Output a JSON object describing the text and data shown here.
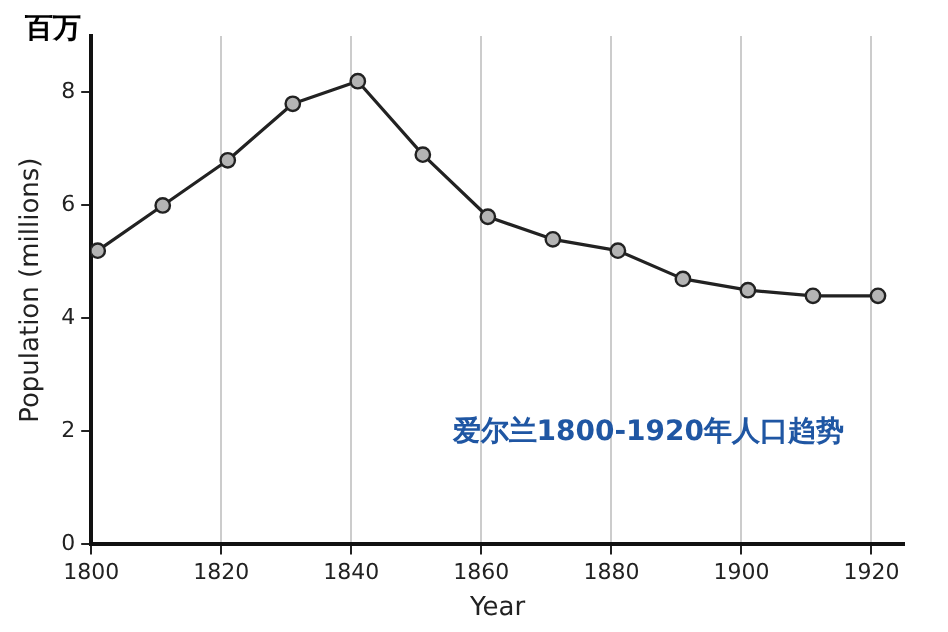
{
  "chart_data": {
    "type": "line",
    "xlabel": "Year",
    "ylabel": "Population (millions)",
    "annotations": [
      "百万",
      "爱尔兰1800-1920年人口趋势"
    ],
    "x": [
      1801,
      1811,
      1821,
      1831,
      1841,
      1851,
      1861,
      1871,
      1881,
      1891,
      1901,
      1911,
      1921
    ],
    "series": [
      {
        "color": "#222222",
        "values": [
          5.2,
          6.0,
          6.8,
          7.8,
          8.2,
          6.9,
          5.8,
          5.4,
          5.2,
          4.7,
          4.5,
          4.4,
          4.4
        ]
      }
    ],
    "xlim": [
      1800,
      1925
    ],
    "xticks": [
      1800,
      1820,
      1840,
      1860,
      1880,
      1900,
      1920
    ],
    "ylim": [
      0,
      9
    ],
    "yticks": [
      0,
      2,
      4,
      6,
      8
    ],
    "grid": "x",
    "legend": false,
    "marker": "circle",
    "line_style": "solid"
  }
}
